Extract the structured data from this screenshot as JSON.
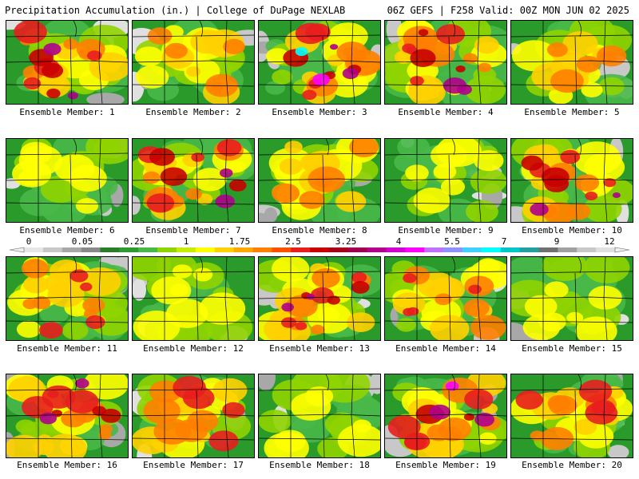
{
  "header": {
    "title_left": "Precipitation Accumulation (in.) | College of DuPage NEXLAB",
    "title_right": "06Z GEFS | F258 Valid: 00Z MON JUN 02 2025"
  },
  "colorbar": {
    "labels": [
      "0",
      "0.05",
      "0.25",
      "1",
      "1.75",
      "2.5",
      "3.25",
      "4",
      "5.5",
      "7",
      "9",
      "12"
    ],
    "colors": [
      "#e6e6e6",
      "#c8c8c8",
      "#a8a8a8",
      "#8a8a8a",
      "#2a7d2a",
      "#2e9b2e",
      "#48b848",
      "#8fd400",
      "#c8ec00",
      "#ffff00",
      "#ffd000",
      "#ffa800",
      "#ff8000",
      "#ff5000",
      "#e81e1e",
      "#c80000",
      "#a80018",
      "#a00050",
      "#b0008c",
      "#d000d0",
      "#ff00ff",
      "#c070ff",
      "#9090ff",
      "#40d0ff",
      "#00ffff",
      "#00c8c8",
      "#20a0a0",
      "#707070",
      "#a0a0a0",
      "#c8c8c8",
      "#e0e0e0"
    ]
  },
  "members": [
    {
      "caption": "Ensemble Member: 1"
    },
    {
      "caption": "Ensemble Member: 2"
    },
    {
      "caption": "Ensemble Member: 3"
    },
    {
      "caption": "Ensemble Member: 4"
    },
    {
      "caption": "Ensemble Member: 5"
    },
    {
      "caption": "Ensemble Member: 6"
    },
    {
      "caption": "Ensemble Member: 7"
    },
    {
      "caption": "Ensemble Member: 8"
    },
    {
      "caption": "Ensemble Member: 9"
    },
    {
      "caption": "Ensemble Member: 10"
    },
    {
      "caption": "Ensemble Member: 11"
    },
    {
      "caption": "Ensemble Member: 12"
    },
    {
      "caption": "Ensemble Member: 13"
    },
    {
      "caption": "Ensemble Member: 14"
    },
    {
      "caption": "Ensemble Member: 15"
    },
    {
      "caption": "Ensemble Member: 16"
    },
    {
      "caption": "Ensemble Member: 17"
    },
    {
      "caption": "Ensemble Member: 18"
    },
    {
      "caption": "Ensemble Member: 19"
    },
    {
      "caption": "Ensemble Member: 20"
    }
  ]
}
